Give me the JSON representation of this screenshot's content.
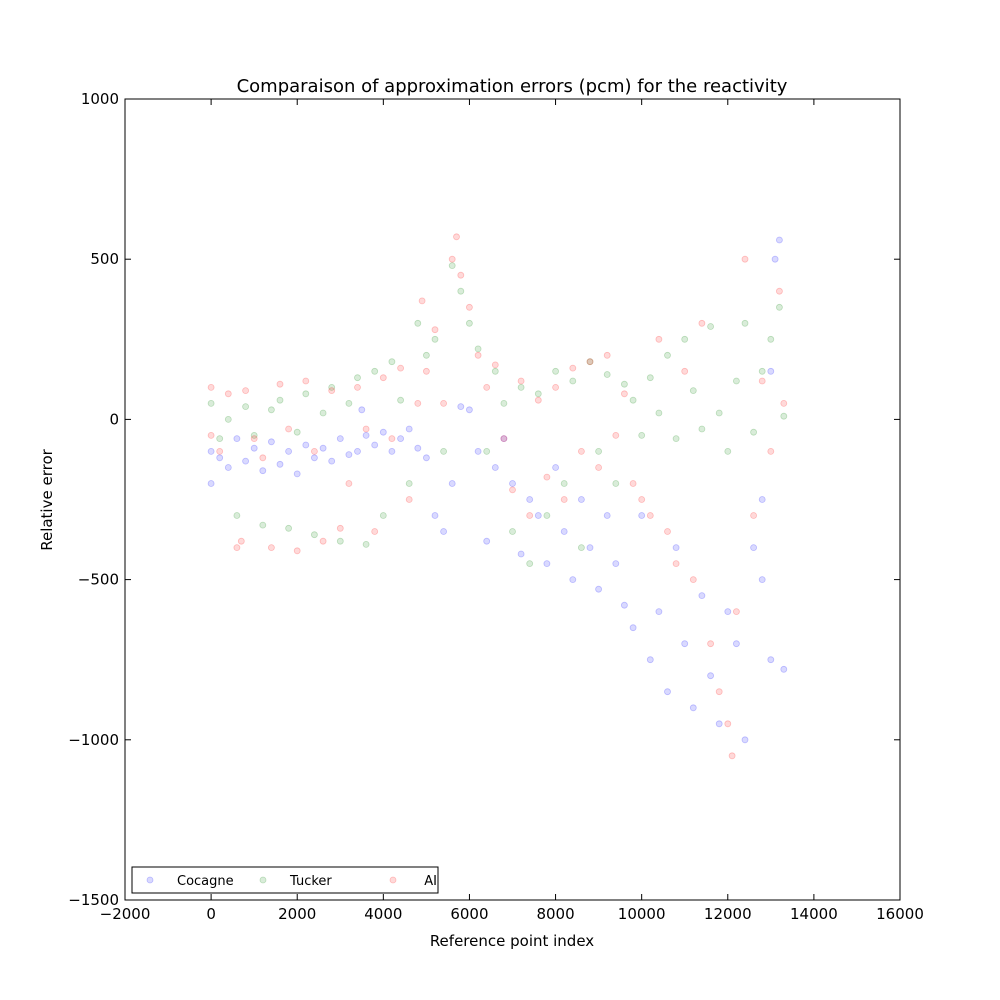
{
  "chart_data": {
    "type": "scatter",
    "title": "Comparaison of approximation errors (pcm) for the reactivity",
    "xlabel": "Reference point index",
    "ylabel": "Relative error",
    "xlim": [
      -2000,
      16000
    ],
    "ylim": [
      -1500,
      1000
    ],
    "x_ticks": [
      -2000,
      0,
      2000,
      4000,
      6000,
      8000,
      10000,
      12000,
      14000,
      16000
    ],
    "y_ticks": [
      -1500,
      -1000,
      -500,
      0,
      500,
      1000
    ],
    "x_tick_labels": [
      "−2000",
      "0",
      "2000",
      "4000",
      "6000",
      "8000",
      "10000",
      "12000",
      "14000",
      "16000"
    ],
    "y_tick_labels": [
      "−1500",
      "−1000",
      "−500",
      "0",
      "500",
      "1000"
    ],
    "grid": false,
    "legend": "lower-left",
    "series": [
      {
        "name": "Cocagne",
        "color": "#0000ff",
        "opacity": 0.15,
        "points": [
          [
            0,
            -100
          ],
          [
            0,
            -200
          ],
          [
            200,
            -120
          ],
          [
            400,
            -150
          ],
          [
            600,
            -60
          ],
          [
            800,
            -130
          ],
          [
            1000,
            -90
          ],
          [
            1200,
            -160
          ],
          [
            1400,
            -70
          ],
          [
            1600,
            -140
          ],
          [
            1800,
            -100
          ],
          [
            2000,
            -170
          ],
          [
            2200,
            -80
          ],
          [
            2400,
            -120
          ],
          [
            2600,
            -90
          ],
          [
            2800,
            -130
          ],
          [
            3000,
            -60
          ],
          [
            3200,
            -110
          ],
          [
            3400,
            -100
          ],
          [
            3500,
            30
          ],
          [
            3600,
            -50
          ],
          [
            3800,
            -80
          ],
          [
            4000,
            -40
          ],
          [
            4200,
            -100
          ],
          [
            4400,
            -60
          ],
          [
            4600,
            -30
          ],
          [
            4800,
            -90
          ],
          [
            5000,
            -120
          ],
          [
            5200,
            -300
          ],
          [
            5400,
            -350
          ],
          [
            5600,
            -200
          ],
          [
            5800,
            40
          ],
          [
            6000,
            30
          ],
          [
            6200,
            -100
          ],
          [
            6400,
            -380
          ],
          [
            6600,
            -150
          ],
          [
            6800,
            -60
          ],
          [
            7000,
            -200
          ],
          [
            7200,
            -420
          ],
          [
            7400,
            -250
          ],
          [
            7600,
            -300
          ],
          [
            7800,
            -450
          ],
          [
            8000,
            -150
          ],
          [
            8200,
            -350
          ],
          [
            8400,
            -500
          ],
          [
            8600,
            -250
          ],
          [
            8800,
            -400
          ],
          [
            9000,
            -530
          ],
          [
            9200,
            -300
          ],
          [
            9400,
            -450
          ],
          [
            9600,
            -580
          ],
          [
            9800,
            -650
          ],
          [
            10000,
            -300
          ],
          [
            10200,
            -750
          ],
          [
            10400,
            -600
          ],
          [
            10600,
            -850
          ],
          [
            10800,
            -400
          ],
          [
            11000,
            -700
          ],
          [
            11200,
            -900
          ],
          [
            11400,
            -550
          ],
          [
            11600,
            -800
          ],
          [
            11800,
            -950
          ],
          [
            12000,
            -600
          ],
          [
            12200,
            -700
          ],
          [
            12400,
            -1000
          ],
          [
            12600,
            -400
          ],
          [
            12800,
            -250
          ],
          [
            13000,
            -750
          ],
          [
            13100,
            500
          ],
          [
            13200,
            560
          ],
          [
            13300,
            -780
          ],
          [
            13000,
            150
          ],
          [
            12800,
            -500
          ]
        ]
      },
      {
        "name": "Tucker",
        "color": "#008000",
        "opacity": 0.15,
        "points": [
          [
            0,
            50
          ],
          [
            200,
            -60
          ],
          [
            400,
            0
          ],
          [
            600,
            -300
          ],
          [
            800,
            40
          ],
          [
            1000,
            -50
          ],
          [
            1200,
            -330
          ],
          [
            1400,
            30
          ],
          [
            1600,
            60
          ],
          [
            1800,
            -340
          ],
          [
            2000,
            -40
          ],
          [
            2200,
            80
          ],
          [
            2400,
            -360
          ],
          [
            2600,
            20
          ],
          [
            2800,
            100
          ],
          [
            3000,
            -380
          ],
          [
            3200,
            50
          ],
          [
            3400,
            130
          ],
          [
            3600,
            -390
          ],
          [
            3800,
            150
          ],
          [
            4000,
            -300
          ],
          [
            4200,
            180
          ],
          [
            4400,
            60
          ],
          [
            4600,
            -200
          ],
          [
            4800,
            300
          ],
          [
            5000,
            200
          ],
          [
            5200,
            250
          ],
          [
            5400,
            -100
          ],
          [
            5600,
            480
          ],
          [
            5800,
            400
          ],
          [
            6000,
            300
          ],
          [
            6200,
            220
          ],
          [
            6400,
            -100
          ],
          [
            6600,
            150
          ],
          [
            6800,
            50
          ],
          [
            7000,
            -350
          ],
          [
            7200,
            100
          ],
          [
            7400,
            -450
          ],
          [
            7600,
            80
          ],
          [
            7800,
            -300
          ],
          [
            8000,
            150
          ],
          [
            8200,
            -200
          ],
          [
            8400,
            120
          ],
          [
            8600,
            -400
          ],
          [
            8800,
            180
          ],
          [
            9000,
            -100
          ],
          [
            9200,
            140
          ],
          [
            9400,
            -200
          ],
          [
            9600,
            110
          ],
          [
            9800,
            60
          ],
          [
            10000,
            -50
          ],
          [
            10200,
            130
          ],
          [
            10400,
            20
          ],
          [
            10600,
            200
          ],
          [
            10800,
            -60
          ],
          [
            11000,
            250
          ],
          [
            11200,
            90
          ],
          [
            11400,
            -30
          ],
          [
            11600,
            290
          ],
          [
            11800,
            20
          ],
          [
            12000,
            -100
          ],
          [
            12200,
            120
          ],
          [
            12400,
            300
          ],
          [
            12600,
            -40
          ],
          [
            12800,
            150
          ],
          [
            13000,
            250
          ],
          [
            13200,
            350
          ],
          [
            13300,
            10
          ]
        ]
      },
      {
        "name": "AI",
        "color": "#ff0000",
        "opacity": 0.15,
        "points": [
          [
            0,
            100
          ],
          [
            0,
            -50
          ],
          [
            200,
            -100
          ],
          [
            400,
            80
          ],
          [
            600,
            -400
          ],
          [
            700,
            -380
          ],
          [
            800,
            90
          ],
          [
            1000,
            -60
          ],
          [
            1200,
            -120
          ],
          [
            1400,
            -400
          ],
          [
            1600,
            110
          ],
          [
            1800,
            -30
          ],
          [
            2000,
            -410
          ],
          [
            2200,
            120
          ],
          [
            2400,
            -100
          ],
          [
            2600,
            -380
          ],
          [
            2800,
            90
          ],
          [
            3000,
            -340
          ],
          [
            3200,
            -200
          ],
          [
            3400,
            100
          ],
          [
            3600,
            -30
          ],
          [
            3800,
            -350
          ],
          [
            4000,
            130
          ],
          [
            4200,
            -60
          ],
          [
            4400,
            160
          ],
          [
            4600,
            -250
          ],
          [
            4800,
            50
          ],
          [
            4900,
            370
          ],
          [
            5000,
            150
          ],
          [
            5200,
            280
          ],
          [
            5400,
            50
          ],
          [
            5600,
            500
          ],
          [
            5700,
            570
          ],
          [
            5800,
            450
          ],
          [
            6000,
            350
          ],
          [
            6200,
            200
          ],
          [
            6400,
            100
          ],
          [
            6600,
            170
          ],
          [
            6800,
            -60
          ],
          [
            7000,
            -220
          ],
          [
            7200,
            120
          ],
          [
            7400,
            -300
          ],
          [
            7600,
            60
          ],
          [
            7800,
            -180
          ],
          [
            8000,
            100
          ],
          [
            8200,
            -250
          ],
          [
            8400,
            160
          ],
          [
            8600,
            -100
          ],
          [
            8800,
            180
          ],
          [
            9000,
            -150
          ],
          [
            9200,
            200
          ],
          [
            9400,
            -50
          ],
          [
            9600,
            80
          ],
          [
            9800,
            -200
          ],
          [
            10000,
            -250
          ],
          [
            10200,
            -300
          ],
          [
            10400,
            250
          ],
          [
            10600,
            -350
          ],
          [
            10800,
            -450
          ],
          [
            11000,
            150
          ],
          [
            11200,
            -500
          ],
          [
            11400,
            300
          ],
          [
            11600,
            -700
          ],
          [
            11800,
            -850
          ],
          [
            12000,
            -950
          ],
          [
            12100,
            -1050
          ],
          [
            12200,
            -600
          ],
          [
            12400,
            500
          ],
          [
            12600,
            -300
          ],
          [
            12800,
            120
          ],
          [
            13000,
            -100
          ],
          [
            13200,
            400
          ],
          [
            13300,
            50
          ]
        ]
      }
    ]
  }
}
